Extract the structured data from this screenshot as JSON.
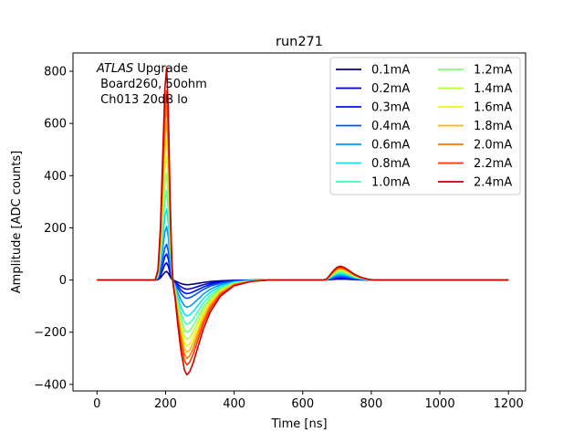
{
  "chart_data": {
    "type": "line",
    "title": "run271",
    "xlabel": "Time [ns]",
    "ylabel": "Amplitude [ADC counts]",
    "xlim": [
      -70,
      1250
    ],
    "ylim": [
      -425,
      870
    ],
    "xticks": [
      0,
      200,
      400,
      600,
      800,
      1000,
      1200
    ],
    "yticks": [
      -400,
      -200,
      0,
      200,
      400,
      600,
      800
    ],
    "xtick_labels": [
      "0",
      "200",
      "400",
      "600",
      "800",
      "1000",
      "1200"
    ],
    "ytick_labels": [
      "−400",
      "−200",
      "0",
      "200",
      "400",
      "600",
      "800"
    ],
    "grid": false,
    "legend_position": "top-right",
    "legend_columns": 2,
    "annotation": {
      "line1_italic": "ATLAS",
      "line1_rest": " Upgrade",
      "line2": " Board260, 50ohm",
      "line3": " Ch013 20dB lo"
    },
    "pulse_shape": {
      "x": [
        0,
        170,
        178,
        185,
        192,
        198,
        203,
        208,
        213,
        218,
        222,
        228,
        235,
        245,
        255,
        262,
        270,
        280,
        295,
        310,
        330,
        360,
        400,
        450,
        500,
        600,
        660,
        670,
        680,
        690,
        700,
        710,
        720,
        735,
        750,
        770,
        790,
        800,
        810,
        1200
      ],
      "y": [
        0,
        0,
        0.05,
        0.25,
        0.6,
        0.9,
        1.0,
        0.8,
        0.4,
        0.1,
        -0.05,
        -0.2,
        -0.45,
        -0.75,
        -0.95,
        -1.0,
        -0.97,
        -0.88,
        -0.7,
        -0.52,
        -0.34,
        -0.17,
        -0.06,
        -0.015,
        0,
        0,
        0,
        0.01,
        0.05,
        0.09,
        0.12,
        0.13,
        0.12,
        0.09,
        0.055,
        0.025,
        0.008,
        0.002,
        0,
        0
      ]
    },
    "series": [
      {
        "name": "0.1mA",
        "color": "#00007f",
        "peak": 33,
        "trough": -18,
        "bump": 4
      },
      {
        "name": "0.2mA",
        "color": "#0000c8",
        "peak": 66,
        "trough": -35,
        "bump": 7
      },
      {
        "name": "0.3mA",
        "color": "#0010ff",
        "peak": 100,
        "trough": -52,
        "bump": 10
      },
      {
        "name": "0.4mA",
        "color": "#0054ff",
        "peak": 137,
        "trough": -70,
        "bump": 13
      },
      {
        "name": "0.6mA",
        "color": "#0098ff",
        "peak": 205,
        "trough": -104,
        "bump": 19
      },
      {
        "name": "0.8mA",
        "color": "#12e0f5",
        "peak": 272,
        "trough": -138,
        "bump": 24
      },
      {
        "name": "1.0mA",
        "color": "#41ffb6",
        "peak": 340,
        "trough": -170,
        "bump": 29
      },
      {
        "name": "1.2mA",
        "color": "#7dff7a",
        "peak": 408,
        "trough": -200,
        "bump": 33
      },
      {
        "name": "1.4mA",
        "color": "#b9ff3d",
        "peak": 475,
        "trough": -228,
        "bump": 37
      },
      {
        "name": "1.6mA",
        "color": "#f4f802",
        "peak": 540,
        "trough": -253,
        "bump": 40
      },
      {
        "name": "1.8mA",
        "color": "#ffb800",
        "peak": 605,
        "trough": -277,
        "bump": 43
      },
      {
        "name": "2.0mA",
        "color": "#ff7700",
        "peak": 668,
        "trough": -300,
        "bump": 46
      },
      {
        "name": "2.2mA",
        "color": "#ff3800",
        "peak": 725,
        "trough": -325,
        "bump": 49
      },
      {
        "name": "2.4mA",
        "color": "#cc0000",
        "peak": 815,
        "trough": -363,
        "bump": 53
      }
    ]
  }
}
